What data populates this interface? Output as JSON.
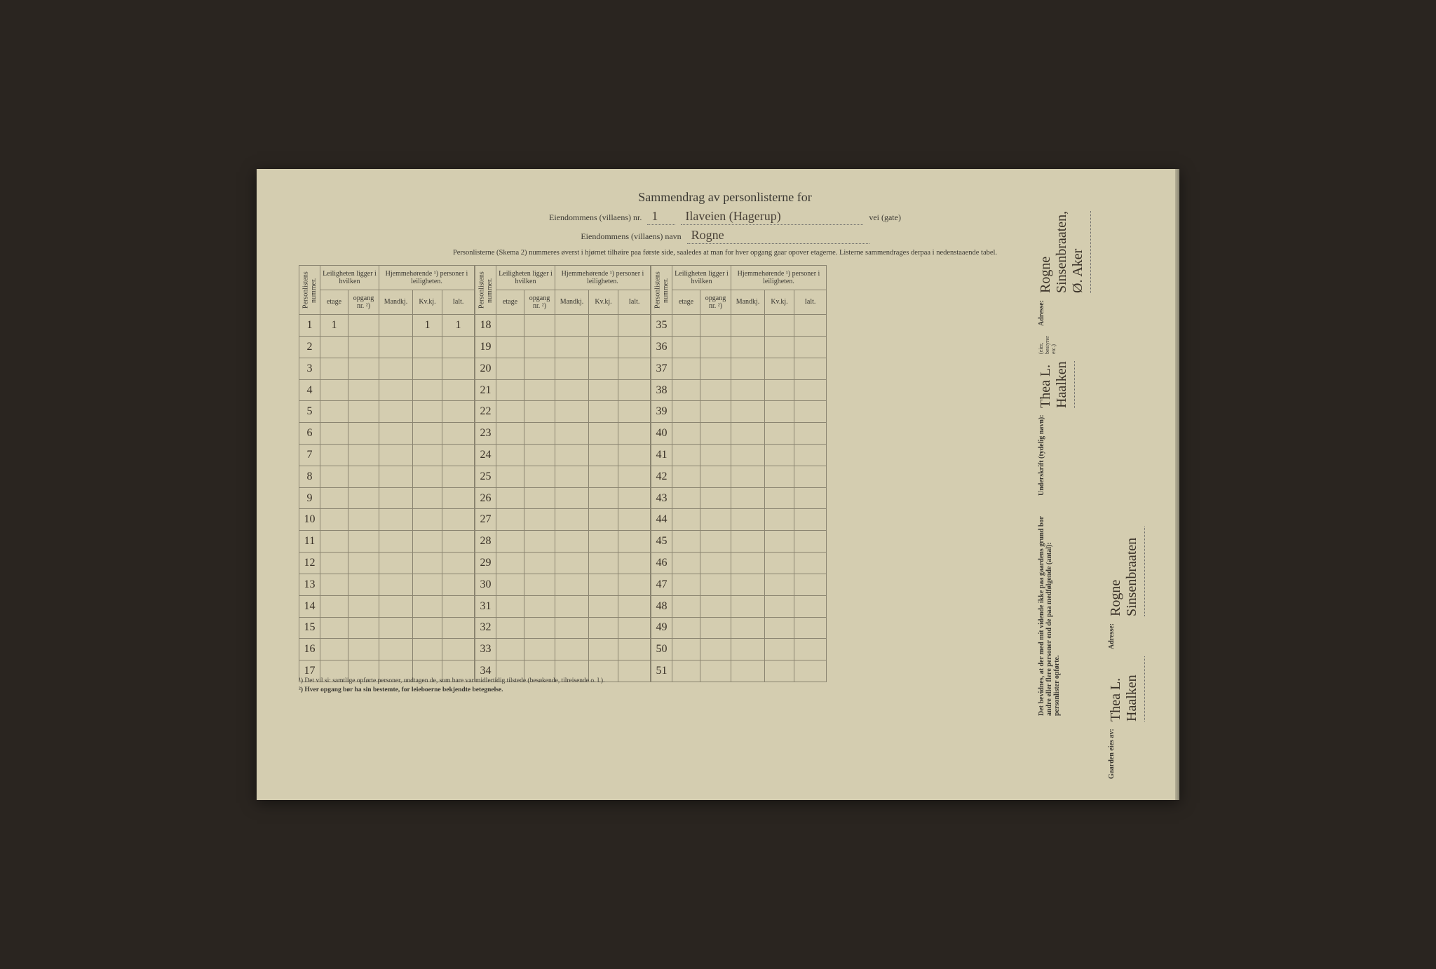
{
  "title": "Sammendrag av personlisterne for",
  "header": {
    "nr_label": "Eiendommens (villaens) nr.",
    "nr_value": "1",
    "street_value": "Ilaveien (Hagerup)",
    "street_suffix": "vei  (gate)",
    "name_label": "Eiendommens (villaens) navn",
    "name_value": "Rogne"
  },
  "instruction": "Personlisterne (Skema 2) nummeres øverst i hjørnet tilhøire paa første side, saaledes at man for hver opgang gaar opover etagerne. Listerne sammendrages derpaa i nedenstaaende tabel.",
  "columns": {
    "personlistens_nummer": "Personlistens nummer.",
    "leiligheten_group": "Leiligheten ligger i hvilken",
    "hjemmehorende_group": "Hjemmehørende ¹) personer i leiligheten.",
    "etage": "etage",
    "opgang": "opgang nr. ²)",
    "mandkj": "Mandkj.",
    "kvkj": "Kv.kj.",
    "ialt": "Ialt."
  },
  "blocks": [
    {
      "start": 1,
      "end": 17,
      "rows": [
        {
          "n": 1,
          "etage": "1",
          "opgang": "",
          "mandkj": "",
          "kvkj": "1",
          "ialt": "1"
        },
        {
          "n": 2
        },
        {
          "n": 3
        },
        {
          "n": 4
        },
        {
          "n": 5
        },
        {
          "n": 6
        },
        {
          "n": 7
        },
        {
          "n": 8
        },
        {
          "n": 9
        },
        {
          "n": 10
        },
        {
          "n": 11
        },
        {
          "n": 12
        },
        {
          "n": 13
        },
        {
          "n": 14
        },
        {
          "n": 15
        },
        {
          "n": 16
        },
        {
          "n": 17
        }
      ]
    },
    {
      "start": 18,
      "end": 34,
      "rows": [
        {
          "n": 18
        },
        {
          "n": 19
        },
        {
          "n": 20
        },
        {
          "n": 21
        },
        {
          "n": 22
        },
        {
          "n": 23
        },
        {
          "n": 24
        },
        {
          "n": 25
        },
        {
          "n": 26
        },
        {
          "n": 27
        },
        {
          "n": 28
        },
        {
          "n": 29
        },
        {
          "n": 30
        },
        {
          "n": 31
        },
        {
          "n": 32
        },
        {
          "n": 33
        },
        {
          "n": 34
        }
      ]
    },
    {
      "start": 35,
      "end": 51,
      "rows": [
        {
          "n": 35
        },
        {
          "n": 36
        },
        {
          "n": 37
        },
        {
          "n": 38
        },
        {
          "n": 39
        },
        {
          "n": 40
        },
        {
          "n": 41
        },
        {
          "n": 42
        },
        {
          "n": 43
        },
        {
          "n": 44
        },
        {
          "n": 45
        },
        {
          "n": 46
        },
        {
          "n": 47
        },
        {
          "n": 48
        },
        {
          "n": 49
        },
        {
          "n": 50
        },
        {
          "n": 51
        }
      ]
    }
  ],
  "footnotes": {
    "f1": "¹) Det vil si: samtlige opførte personer, undtagen de, som bare var midlertidig tilstede (besøkende, tilreisende o. l.).",
    "f2": "²) Hver opgang bør ha sin bestemte, for leieboerne bekjendte betegnelse."
  },
  "side": {
    "witness": "Det bevidnes, at der med mit vidende ikke paa gaardens grund bor andre eller flere personer end de paa medfølgende (antal): personlister opførte.",
    "underskrift_label": "Underskrift (tydelig navn):",
    "underskrift_value": "Thea L. Haalken",
    "eier_note": "(eier, bestyrer etc.)",
    "adresse_label": "Adresse:",
    "adresse_value": "Rogne Sinsenbraaten, Ø. Aker",
    "gaarden_label": "Gaarden eies av:",
    "gaarden_value": "Thea L. Haalken",
    "adresse2_label": "Adresse:",
    "adresse2_value": "Rogne Sinsenbraaten"
  },
  "colors": {
    "paper": "#d4cdb0",
    "ink": "#3a3832",
    "border": "#8a8470",
    "handwriting": "#3a3228"
  }
}
